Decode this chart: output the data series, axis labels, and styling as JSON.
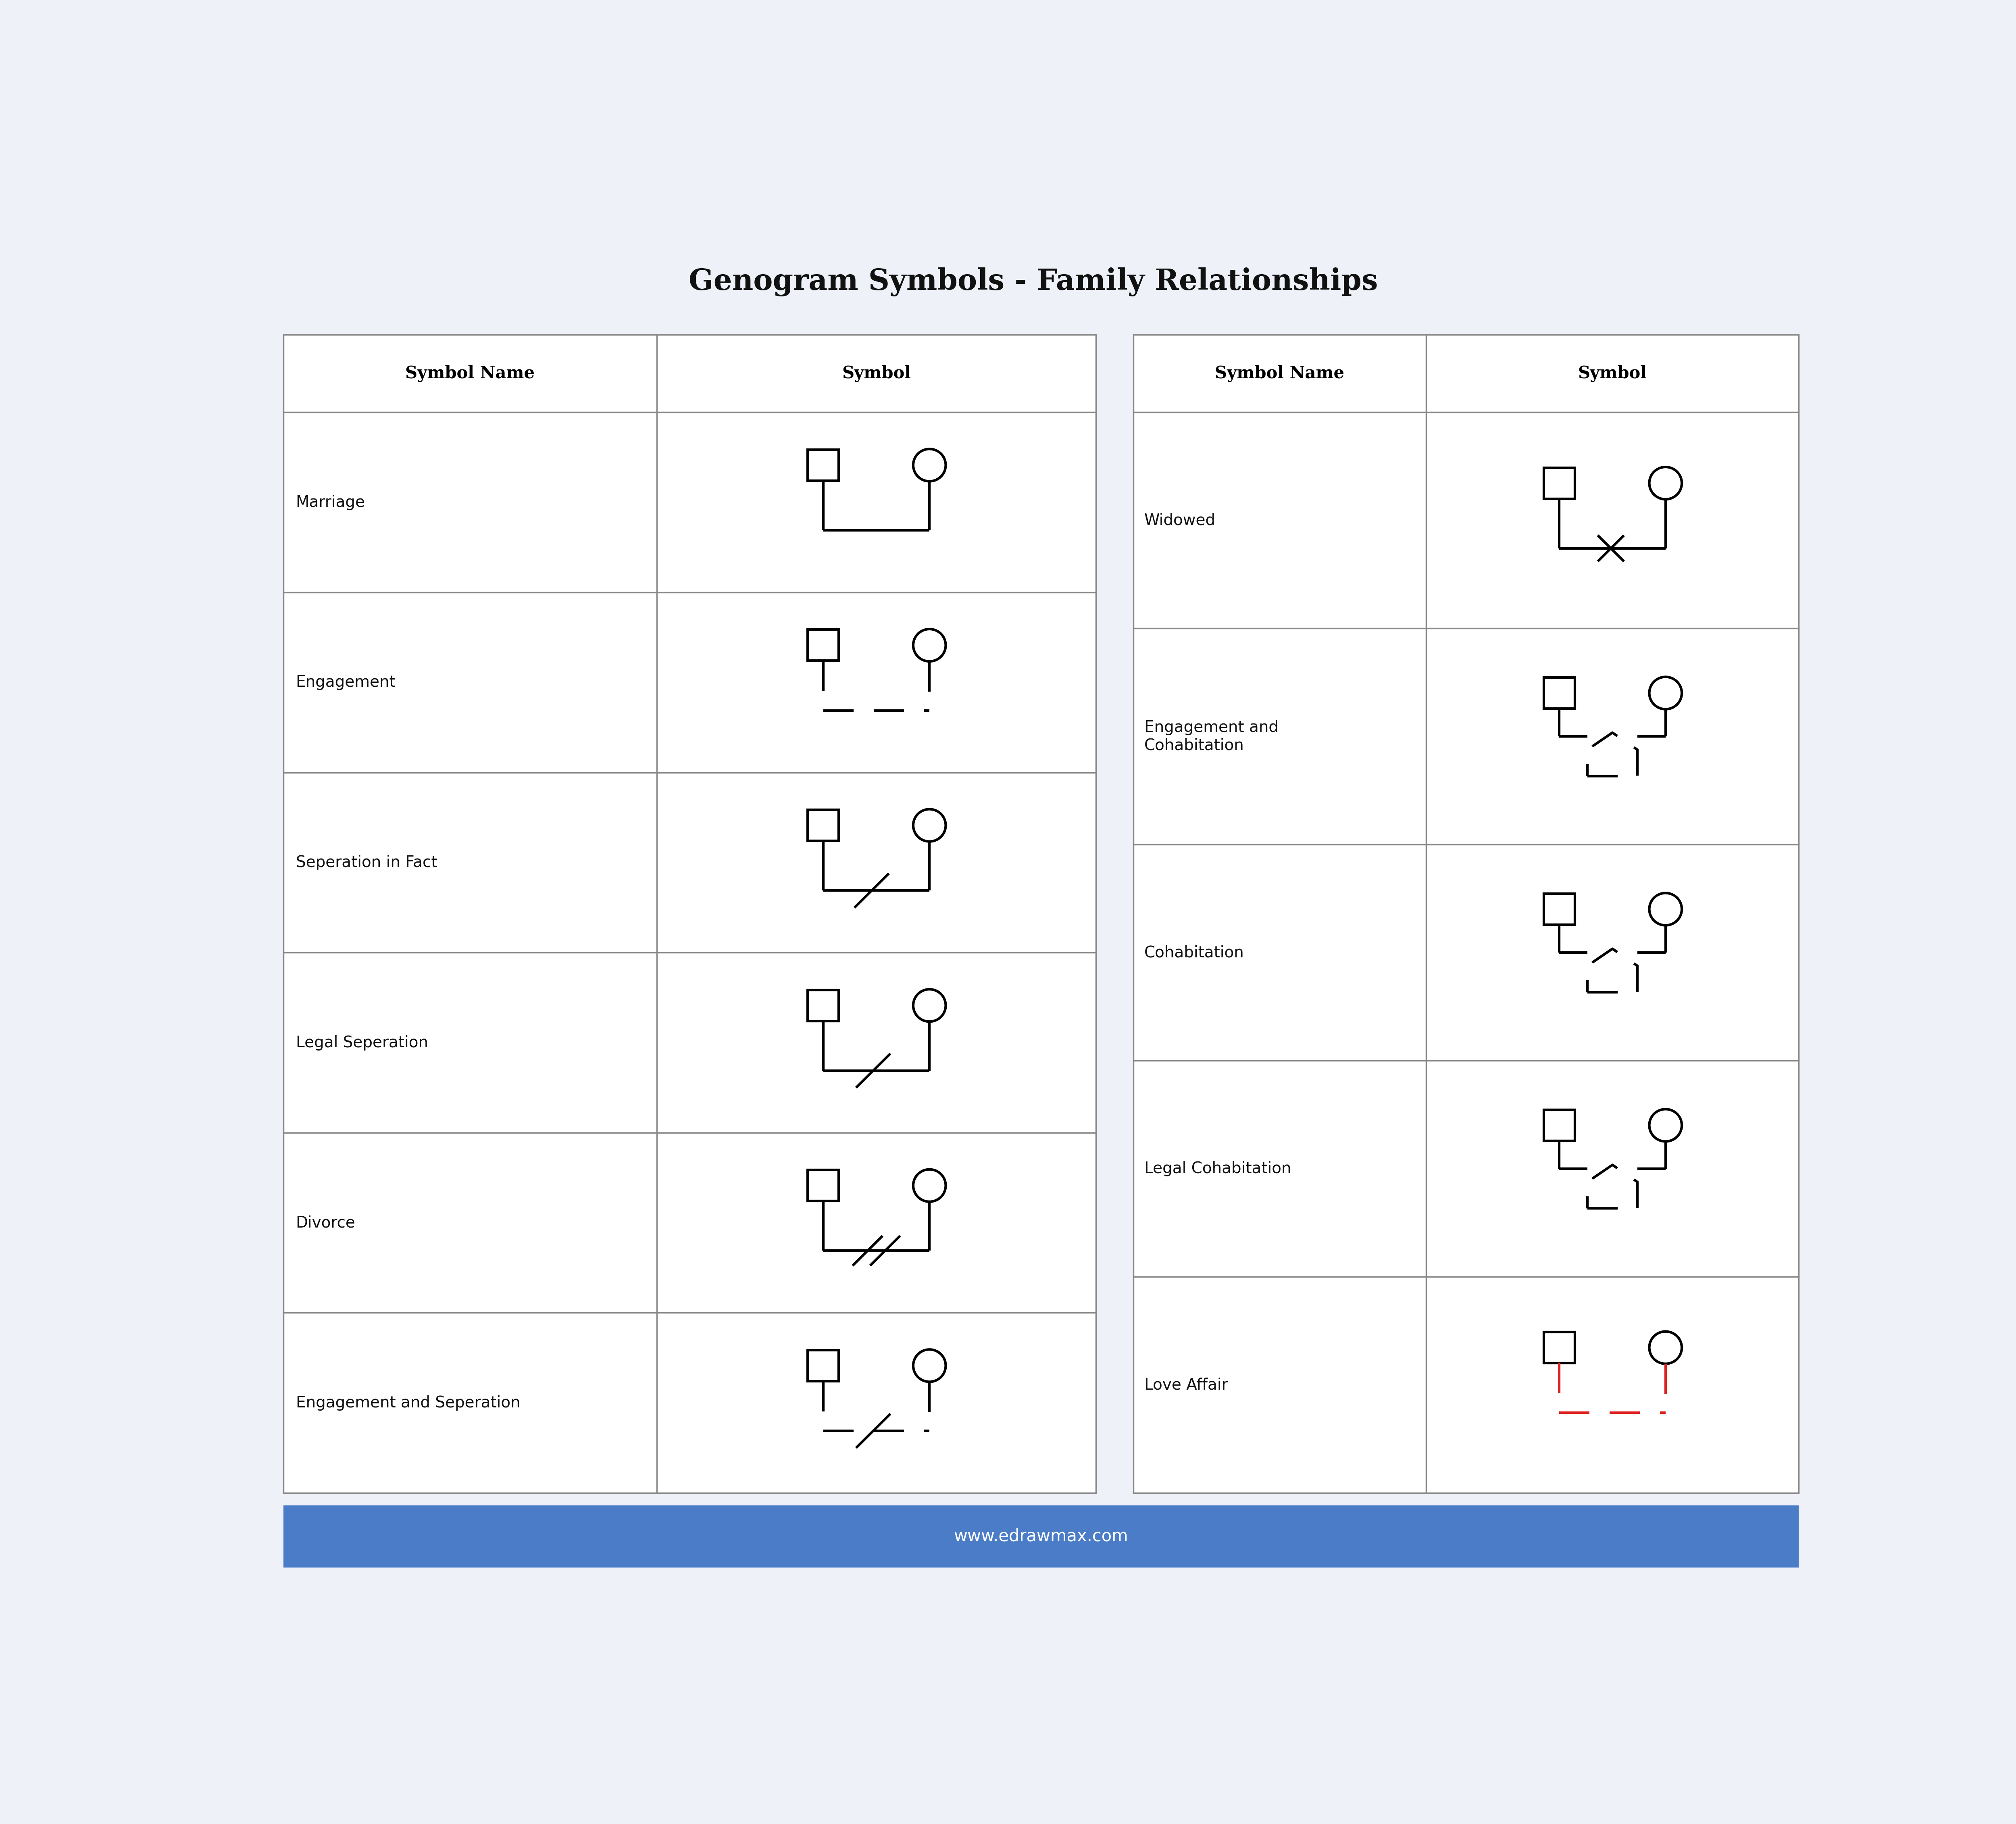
{
  "title": "Genogram Symbols - Family Relationships",
  "bg_color": "#EEF2F8",
  "table_bg": "#FFFFFF",
  "border_color": "#888888",
  "title_fontsize": 52,
  "label_fontsize": 28,
  "header_fontsize": 30,
  "footer_text": "www.edrawmax.com",
  "footer_bg": "#4A7CC7",
  "footer_text_color": "#FFFFFF",
  "footer_fontsize": 30,
  "left_rows": [
    {
      "name": "Marriage",
      "symbol": "marriage"
    },
    {
      "name": "Engagement",
      "symbol": "engagement"
    },
    {
      "name": "Seperation in Fact",
      "symbol": "separation_in_fact"
    },
    {
      "name": "Legal Seperation",
      "symbol": "legal_separation"
    },
    {
      "name": "Divorce",
      "symbol": "divorce"
    },
    {
      "name": "Engagement and Seperation",
      "symbol": "engagement_separation"
    }
  ],
  "right_rows": [
    {
      "name": "Widowed",
      "symbol": "widowed"
    },
    {
      "name": "Engagement and\nCohabitation",
      "symbol": "engagement_cohabitation"
    },
    {
      "name": "Cohabitation",
      "symbol": "cohabitation"
    },
    {
      "name": "Legal Cohabitation",
      "symbol": "legal_cohabitation"
    },
    {
      "name": "Love Affair",
      "symbol": "love_affair"
    }
  ],
  "lw_thick": 4.5,
  "lw_border": 2.5,
  "sq_size": 1.0,
  "circ_r": 0.52,
  "sym_sep": 1.7,
  "dash_pattern": [
    12,
    8
  ]
}
